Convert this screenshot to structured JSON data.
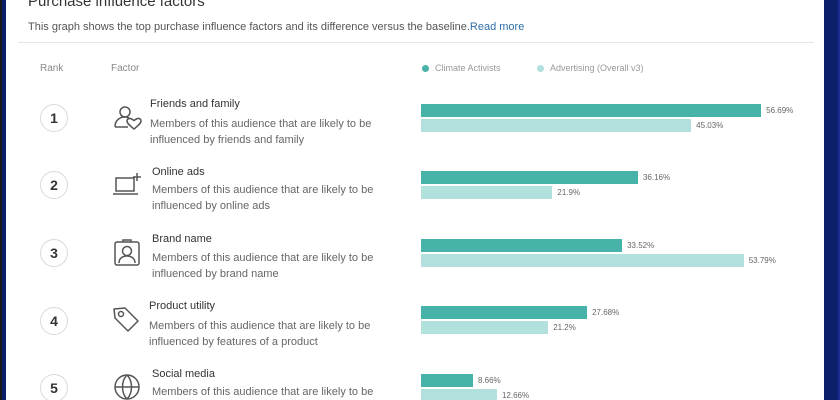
{
  "header": {
    "title": "Purchase influence factors",
    "subtitle": "This graph shows the top purchase influence factors and its difference versus the baseline.",
    "read_more": "Read more"
  },
  "columns": {
    "rank": "Rank",
    "factor": "Factor"
  },
  "colors": {
    "series1": "#47b3a8",
    "series2": "#b2e0dc"
  },
  "chart_data": {
    "type": "bar",
    "orientation": "horizontal",
    "title": "Purchase influence factors",
    "categories": [
      "Friends and family",
      "Online ads",
      "Brand name",
      "Product utility",
      "Social media"
    ],
    "series": [
      {
        "name": "Climate Activists",
        "values": [
          56.69,
          36.16,
          33.52,
          27.68,
          8.66
        ],
        "labels": [
          "56.69%",
          "36.16%",
          "33.52%",
          "27.68%",
          "8.66%"
        ]
      },
      {
        "name": "Advertising (Overall v3)",
        "values": [
          45.03,
          21.9,
          53.79,
          21.2,
          12.66
        ],
        "labels": [
          "45.03%",
          "21.9%",
          "53.79%",
          "21.2%",
          "12.66%"
        ]
      }
    ],
    "xlim": [
      0,
      100
    ],
    "legend": "top"
  },
  "factors": [
    {
      "rank": "1",
      "name": "Friends and family",
      "icon": "friends-heart-icon",
      "desc1": "Members of this audience that are likely to be",
      "desc2": "influenced by friends and family"
    },
    {
      "rank": "2",
      "name": "Online ads",
      "icon": "laptop-plus-icon",
      "desc1": "Members of this audience that are likely to be",
      "desc2": "influenced by online ads"
    },
    {
      "rank": "3",
      "name": "Brand name",
      "icon": "brand-badge-icon",
      "desc1": "Members of this audience that are likely to be",
      "desc2": "influenced by brand name"
    },
    {
      "rank": "4",
      "name": "Product utility",
      "icon": "tag-icon",
      "desc1": "Members of this audience that are likely to be",
      "desc2": "influenced by features of a product"
    },
    {
      "rank": "5",
      "name": "Social media",
      "icon": "globe-icon",
      "desc1": "Members of this audience that are likely to be",
      "desc2": ""
    }
  ]
}
